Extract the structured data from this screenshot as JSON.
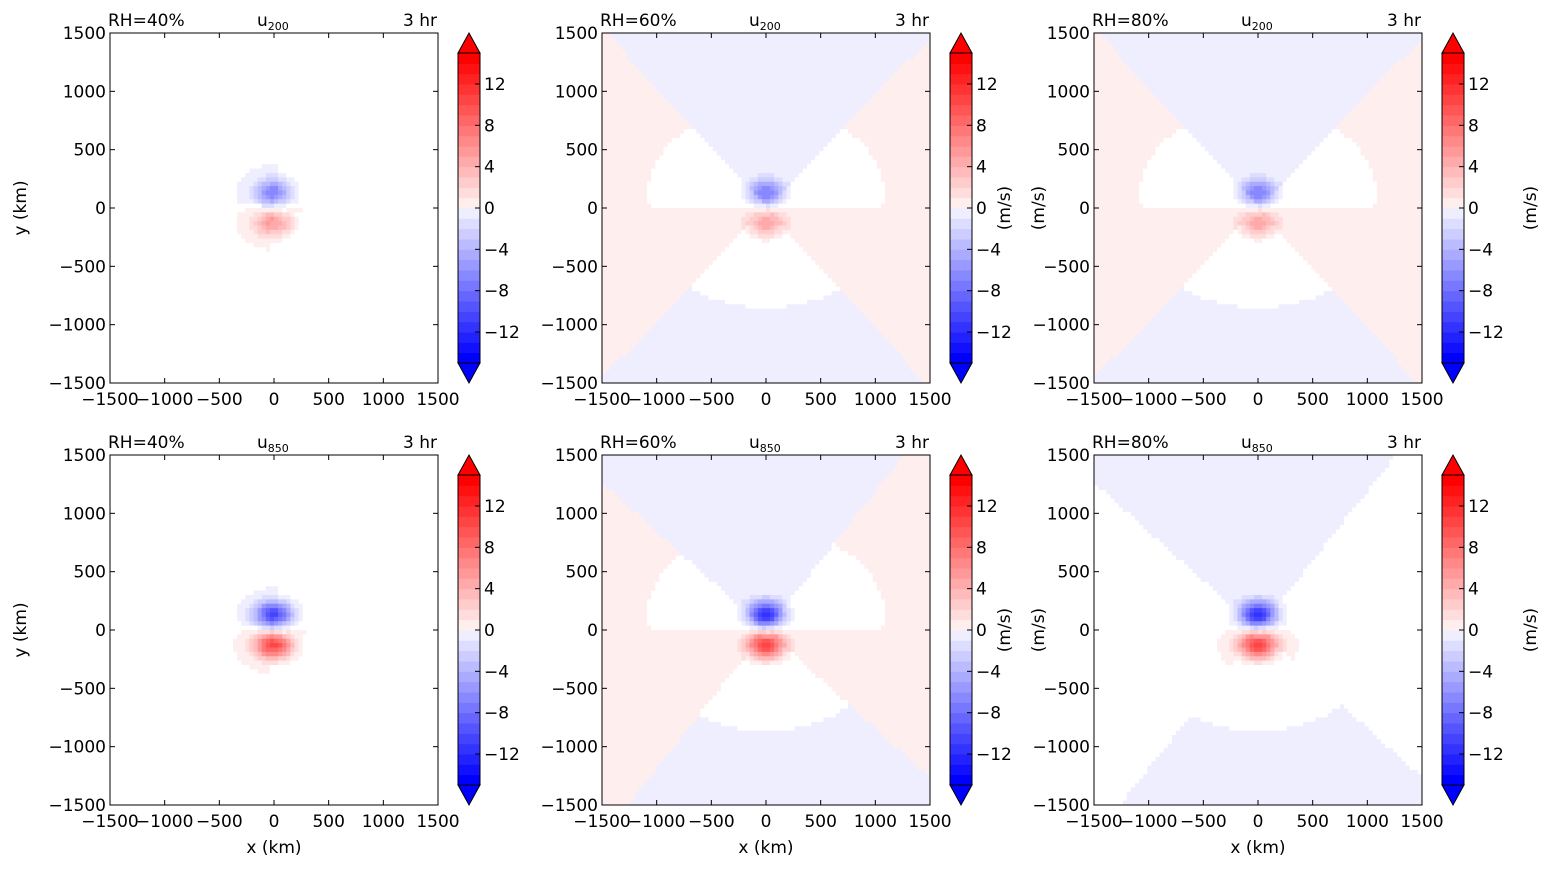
{
  "figure": {
    "panels": [
      {
        "row": 0,
        "col": 0,
        "rh_label": "RH=40%",
        "var_base": "u",
        "var_sub": "200",
        "time_label": "3 hr",
        "ylabel": "y (km)",
        "xlabel": "",
        "cbar_label": ""
      },
      {
        "row": 0,
        "col": 1,
        "rh_label": "RH=60%",
        "var_base": "u",
        "var_sub": "200",
        "time_label": "3 hr",
        "ylabel": "",
        "xlabel": "",
        "cbar_label": "(m/s)"
      },
      {
        "row": 0,
        "col": 2,
        "rh_label": "RH=80%",
        "var_base": "u",
        "var_sub": "200",
        "time_label": "3 hr",
        "ylabel": "(m/s)",
        "xlabel": "",
        "cbar_label": "(m/s)"
      },
      {
        "row": 1,
        "col": 0,
        "rh_label": "RH=40%",
        "var_base": "u",
        "var_sub": "850",
        "time_label": "3 hr",
        "ylabel": "y (km)",
        "xlabel": "x (km)",
        "cbar_label": ""
      },
      {
        "row": 1,
        "col": 1,
        "rh_label": "RH=60%",
        "var_base": "u",
        "var_sub": "850",
        "time_label": "3 hr",
        "ylabel": "",
        "xlabel": "x (km)",
        "cbar_label": "(m/s)"
      },
      {
        "row": 1,
        "col": 2,
        "rh_label": "RH=80%",
        "var_base": "u",
        "var_sub": "850",
        "time_label": "3 hr",
        "ylabel": "(m/s)",
        "xlabel": "x (km)",
        "cbar_label": "(m/s)"
      }
    ]
  },
  "chart_data": [
    {
      "type": "heatmap",
      "title": "RH=40%  u200  3 hr",
      "xlabel": "",
      "ylabel": "y (km)",
      "xlim": [
        -1500,
        1500
      ],
      "ylim": [
        -1500,
        1500
      ],
      "xticks": [
        -1500,
        -1000,
        -500,
        0,
        500,
        1000,
        1500
      ],
      "yticks": [
        -1500,
        -1000,
        -500,
        0,
        500,
        1000,
        1500
      ],
      "colorbar": {
        "ticks": [
          -12,
          -8,
          -4,
          0,
          4,
          8,
          12
        ],
        "range": [
          -15,
          15
        ],
        "extend": "both",
        "cmap": "bwr"
      },
      "features": {
        "neg_peak": -7,
        "neg_center": [
          0,
          130
        ],
        "pos_peak": 6,
        "pos_center": [
          0,
          -130
        ],
        "background_pos": 0.4,
        "background_neg": -0.4
      }
    },
    {
      "type": "heatmap",
      "title": "RH=60%  u200  3 hr",
      "xlabel": "",
      "ylabel": "",
      "xlim": [
        -1500,
        1500
      ],
      "ylim": [
        -1500,
        1500
      ],
      "xticks": [
        -1500,
        -1000,
        -500,
        0,
        500,
        1000,
        1500
      ],
      "yticks": [
        -1500,
        -1000,
        -500,
        0,
        500,
        1000,
        1500
      ],
      "colorbar": {
        "ticks": [
          -12,
          -8,
          -4,
          0,
          4,
          8,
          12
        ],
        "range": [
          -15,
          15
        ],
        "extend": "both",
        "cmap": "bwr"
      },
      "features": {
        "neg_peak": -7,
        "neg_center": [
          0,
          130
        ],
        "pos_peak": 6,
        "pos_center": [
          0,
          -130
        ],
        "background_pos": 0.5,
        "background_neg": -0.5
      }
    },
    {
      "type": "heatmap",
      "title": "RH=80%  u200  3 hr",
      "xlabel": "",
      "ylabel": "(m/s)",
      "xlim": [
        -1500,
        1500
      ],
      "ylim": [
        -1500,
        1500
      ],
      "xticks": [
        -1500,
        -1000,
        -500,
        0,
        500,
        1000,
        1500
      ],
      "yticks": [
        -1500,
        -1000,
        -500,
        0,
        500,
        1000,
        1500
      ],
      "colorbar": {
        "ticks": [
          -12,
          -8,
          -4,
          0,
          4,
          8,
          12
        ],
        "range": [
          -15,
          15
        ],
        "extend": "both",
        "cmap": "bwr"
      },
      "features": {
        "neg_peak": -7,
        "neg_center": [
          0,
          130
        ],
        "pos_peak": 6,
        "pos_center": [
          0,
          -130
        ],
        "background_pos": 0.5,
        "background_neg": -0.5
      }
    },
    {
      "type": "heatmap",
      "title": "RH=40%  u850  3 hr",
      "xlabel": "x (km)",
      "ylabel": "y (km)",
      "xlim": [
        -1500,
        1500
      ],
      "ylim": [
        -1500,
        1500
      ],
      "xticks": [
        -1500,
        -1000,
        -500,
        0,
        500,
        1000,
        1500
      ],
      "yticks": [
        -1500,
        -1000,
        -500,
        0,
        500,
        1000,
        1500
      ],
      "colorbar": {
        "ticks": [
          -12,
          -8,
          -4,
          0,
          4,
          8,
          12
        ],
        "range": [
          -15,
          15
        ],
        "extend": "both",
        "cmap": "bwr"
      },
      "features": {
        "neg_peak": -11,
        "neg_center": [
          0,
          130
        ],
        "pos_peak": 11,
        "pos_center": [
          0,
          -130
        ],
        "background_pos": 0.4,
        "background_neg": -0.3
      }
    },
    {
      "type": "heatmap",
      "title": "RH=60%  u850  3 hr",
      "xlabel": "x (km)",
      "ylabel": "",
      "xlim": [
        -1500,
        1500
      ],
      "ylim": [
        -1500,
        1500
      ],
      "xticks": [
        -1500,
        -1000,
        -500,
        0,
        500,
        1000,
        1500
      ],
      "yticks": [
        -1500,
        -1000,
        -500,
        0,
        500,
        1000,
        1500
      ],
      "colorbar": {
        "ticks": [
          -12,
          -8,
          -4,
          0,
          4,
          8,
          12
        ],
        "range": [
          -15,
          15
        ],
        "extend": "both",
        "cmap": "bwr"
      },
      "features": {
        "neg_peak": -12,
        "neg_center": [
          0,
          130
        ],
        "pos_peak": 12,
        "pos_center": [
          0,
          -130
        ],
        "background_pos": 0.5,
        "background_neg": -0.5
      }
    },
    {
      "type": "heatmap",
      "title": "RH=80%  u850  3 hr",
      "xlabel": "x (km)",
      "ylabel": "(m/s)",
      "xlim": [
        -1500,
        1500
      ],
      "ylim": [
        -1500,
        1500
      ],
      "xticks": [
        -1500,
        -1000,
        -500,
        0,
        500,
        1000,
        1500
      ],
      "yticks": [
        -1500,
        -1000,
        -500,
        0,
        500,
        1000,
        1500
      ],
      "colorbar": {
        "ticks": [
          -12,
          -8,
          -4,
          0,
          4,
          8,
          12
        ],
        "range": [
          -15,
          15
        ],
        "extend": "both",
        "cmap": "bwr"
      },
      "features": {
        "neg_peak": -12,
        "neg_center": [
          0,
          130
        ],
        "pos_peak": 12,
        "pos_center": [
          0,
          -130
        ],
        "background_pos": 0.4,
        "background_neg": -0.5
      }
    }
  ]
}
